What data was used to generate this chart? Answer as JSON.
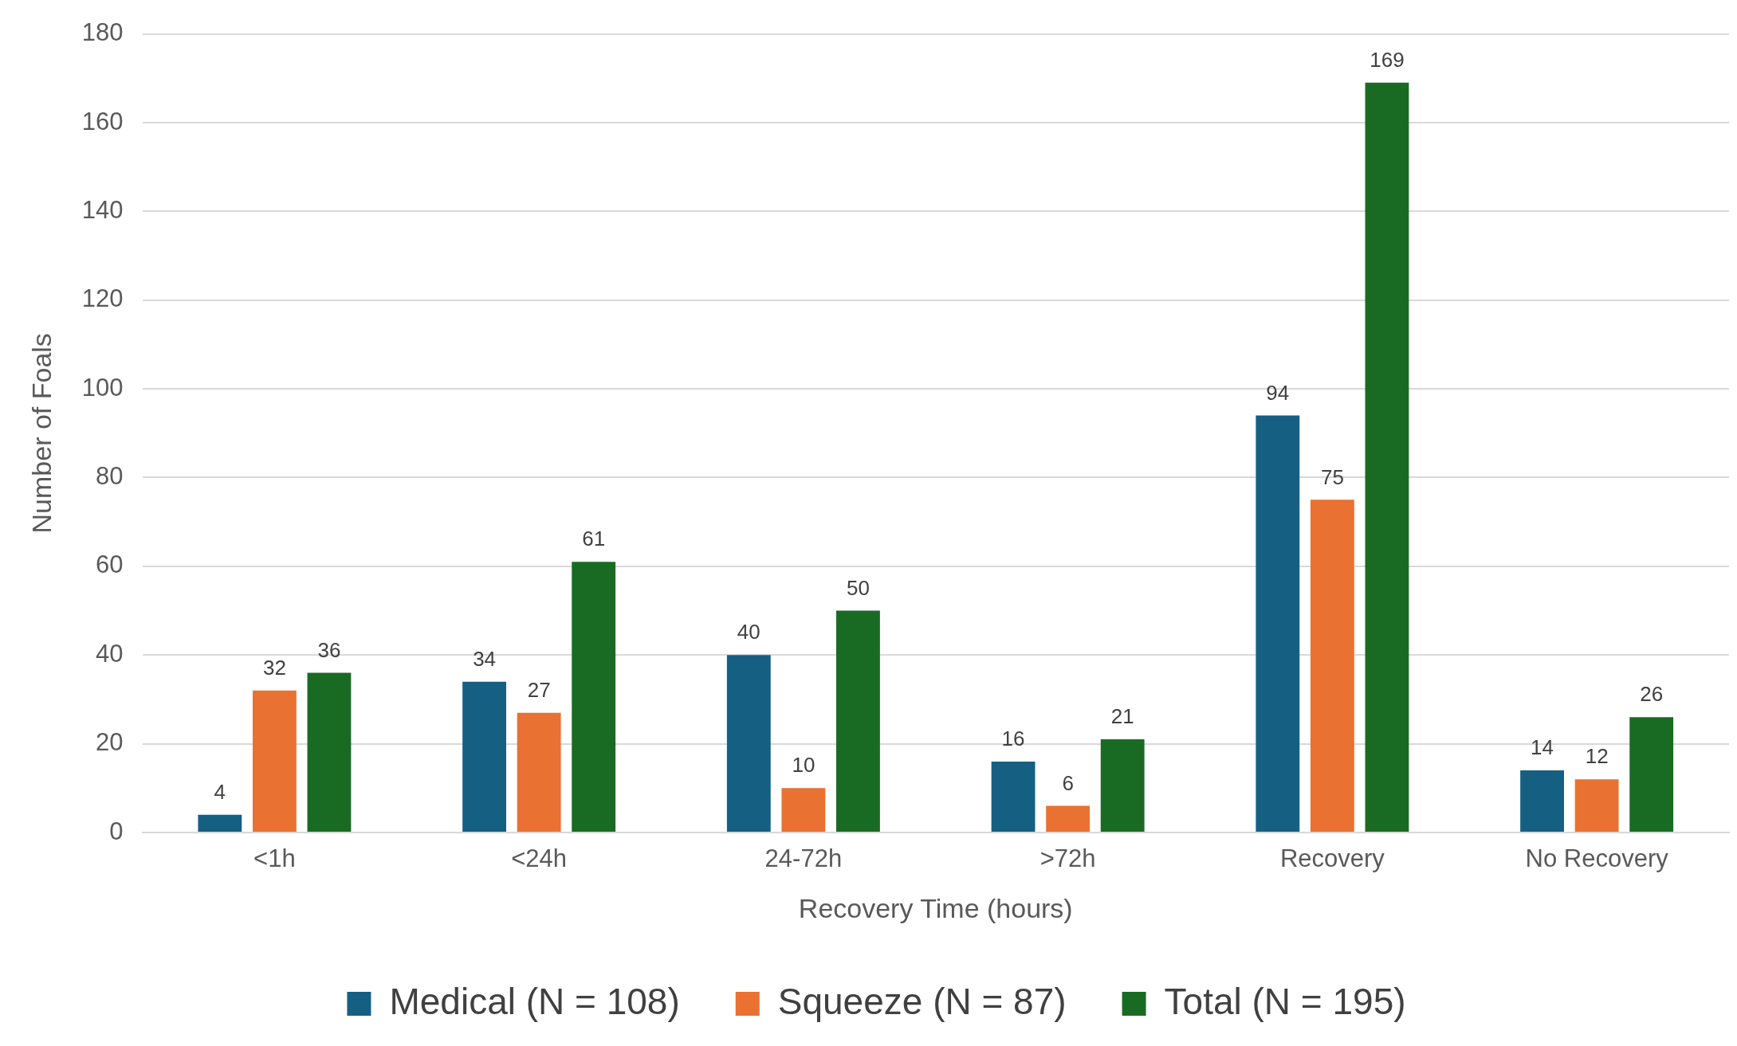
{
  "chart_data": {
    "type": "bar",
    "xlabel": "Recovery Time (hours)",
    "ylabel": "Number of Foals",
    "categories": [
      "<1h",
      "<24h",
      "24-72h",
      ">72h",
      "Recovery",
      "No Recovery"
    ],
    "series": [
      {
        "name": "Medical (N = 108)",
        "color": "#156082",
        "values": [
          4,
          34,
          40,
          16,
          94,
          14
        ]
      },
      {
        "name": "Squeeze (N = 87)",
        "color": "#e97132",
        "values": [
          32,
          27,
          10,
          6,
          75,
          12
        ]
      },
      {
        "name": "Total (N = 195)",
        "color": "#196b24",
        "values": [
          36,
          61,
          50,
          21,
          169,
          26
        ]
      }
    ],
    "ylim": [
      0,
      180
    ],
    "yticks": [
      0,
      20,
      40,
      60,
      80,
      100,
      120,
      140,
      160,
      180
    ],
    "grid": "y",
    "legend": "bottom",
    "data_labels": true
  }
}
